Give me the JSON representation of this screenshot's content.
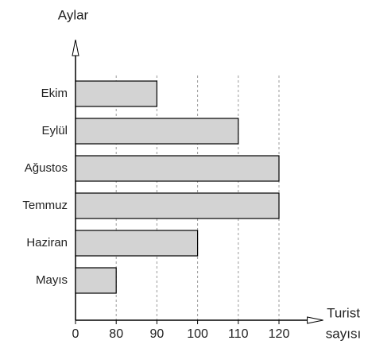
{
  "chart_data": {
    "type": "bar",
    "orientation": "horizontal",
    "ytitle": "Aylar",
    "xlabel": [
      "Turist",
      "sayısı"
    ],
    "categories": [
      "Ekim",
      "Eylül",
      "Ağustos",
      "Temmuz",
      "Haziran",
      "Mayıs"
    ],
    "values": [
      90,
      110,
      120,
      120,
      100,
      80
    ],
    "color": "#d3d3d3",
    "xlim": [
      0,
      125
    ],
    "xticks": [
      0,
      80,
      90,
      100,
      110,
      120
    ],
    "broken_axis": true,
    "grid": true
  }
}
